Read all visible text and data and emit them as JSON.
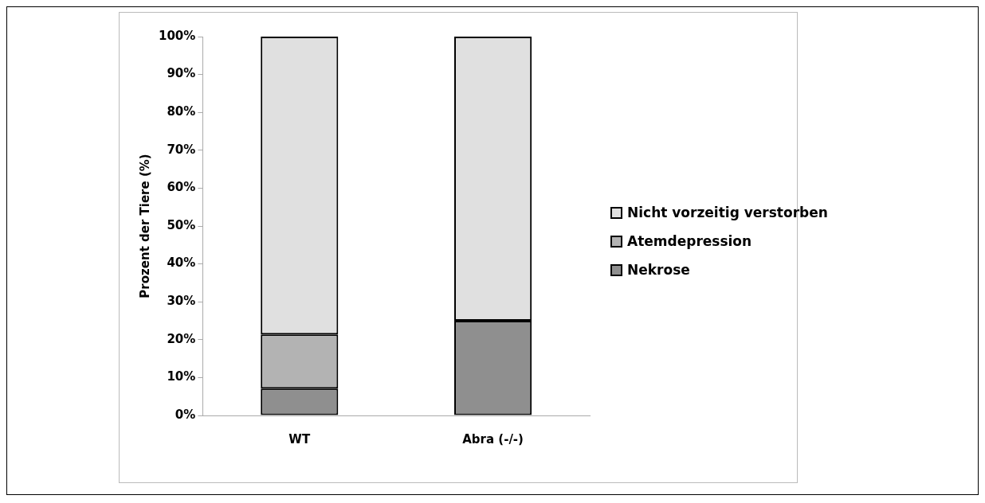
{
  "chart_data": {
    "type": "bar",
    "stacked": true,
    "categories": [
      "WT",
      "Abra (-/-)"
    ],
    "ylabel": "Prozent der Tiere (%)",
    "series": [
      {
        "name": "Nekrose",
        "color": "#8f8f8f",
        "values": [
          7.1,
          25
        ]
      },
      {
        "name": "Atemdepression",
        "color": "#b3b3b3",
        "values": [
          14.3,
          0
        ]
      },
      {
        "name": "Nicht vorzeitig verstorben",
        "color": "#e0e0e0",
        "values": [
          78.6,
          75
        ]
      }
    ],
    "ylim": [
      0,
      100
    ],
    "yticks": [
      {
        "value": 0,
        "label": "0%"
      },
      {
        "value": 10,
        "label": "10%"
      },
      {
        "value": 20,
        "label": "20%"
      },
      {
        "value": 30,
        "label": "30%"
      },
      {
        "value": 40,
        "label": "40%"
      },
      {
        "value": 50,
        "label": "50%"
      },
      {
        "value": 60,
        "label": "60%"
      },
      {
        "value": 70,
        "label": "70%"
      },
      {
        "value": 80,
        "label": "80%"
      },
      {
        "value": 90,
        "label": "90%"
      },
      {
        "value": 100,
        "label": "100%"
      }
    ],
    "grid": false,
    "legend": "right"
  }
}
